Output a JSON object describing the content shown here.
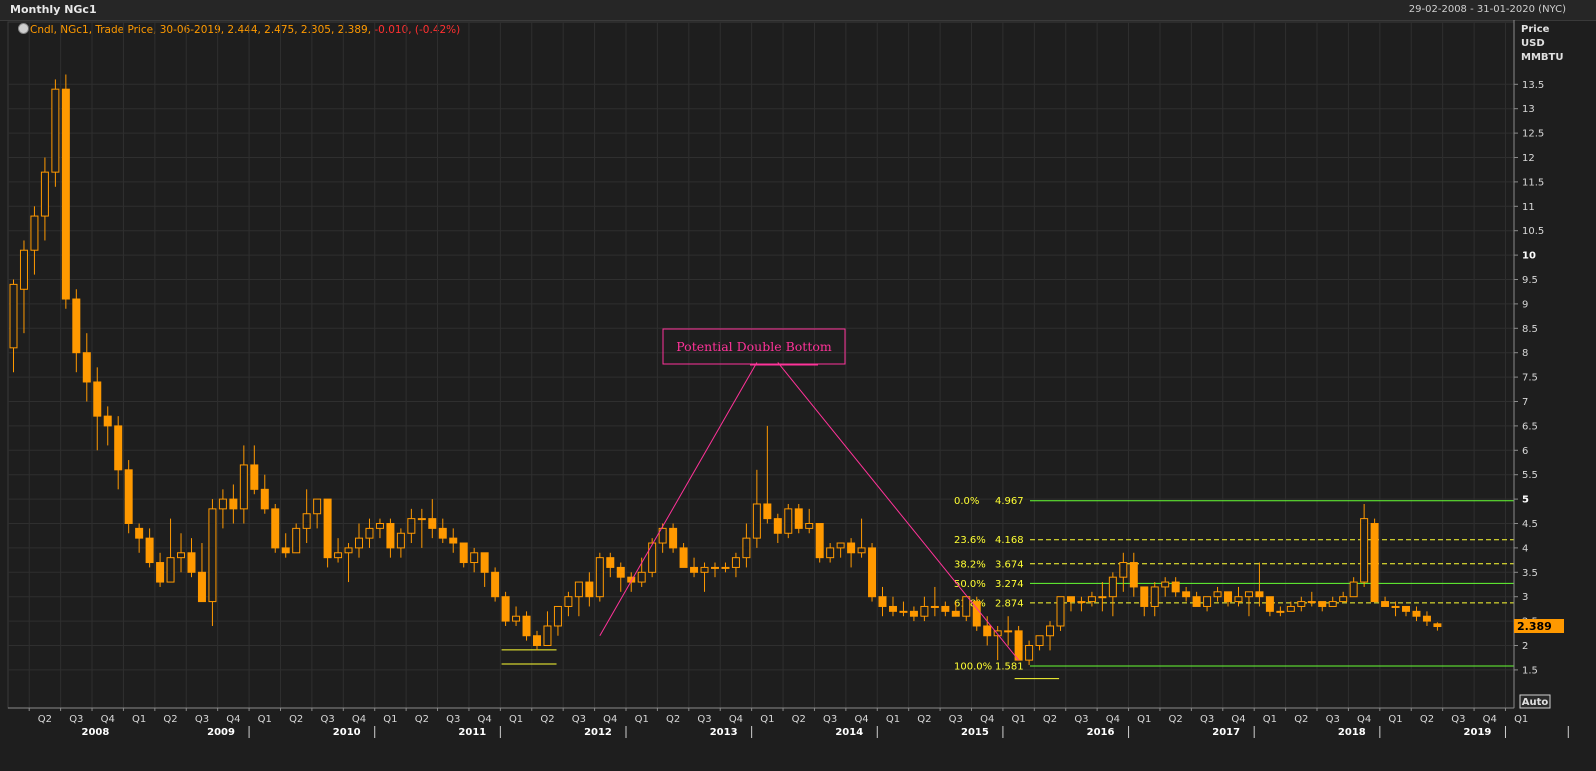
{
  "window": {
    "title": "Monthly NGc1",
    "date_range": "29-02-2008 - 31-01-2020 (NYC)"
  },
  "legend": {
    "prefix": "Cndl, NGc1, Trade Price, 30-06-2019, 2.444, 2.475, 2.305, 2.389,",
    "change": "-0.010, (-0.42%)"
  },
  "axis": {
    "unit_line1": "Price",
    "unit_line2": "USD",
    "unit_line3": "MMBTU",
    "last_price": "2.389",
    "auto_label": "Auto"
  },
  "annotation": {
    "text": "Potential Double Bottom"
  },
  "colors": {
    "candle": "#ff9900",
    "fib_solid": "#66ff33",
    "fib_dashed": "#ffff33",
    "annotation": "#ff3399",
    "price_tag": "#ff9900"
  },
  "chart_data": {
    "type": "candlestick",
    "title": "Monthly NGc1",
    "ylabel": "Price USD MMBTU",
    "ylim": [
      0.5,
      14
    ],
    "ytick_labels": [
      "1.5",
      "2",
      "2.5",
      "3",
      "3.5",
      "4",
      "4.5",
      "5",
      "5.5",
      "6",
      "6.5",
      "7",
      "7.5",
      "8",
      "8.5",
      "9",
      "9.5",
      "10",
      "10.5",
      "11",
      "11.5",
      "12",
      "12.5",
      "13",
      "13.5"
    ],
    "x_start": "2008-02",
    "x_quarter_labels": [
      "Q2",
      "Q3",
      "Q4",
      "Q1",
      "Q2",
      "Q3",
      "Q4",
      "Q1",
      "Q2",
      "Q3",
      "Q4",
      "Q1",
      "Q2",
      "Q3",
      "Q4",
      "Q1",
      "Q2",
      "Q3",
      "Q4",
      "Q1",
      "Q2",
      "Q3",
      "Q4",
      "Q1",
      "Q2",
      "Q3",
      "Q4",
      "Q1",
      "Q2",
      "Q3",
      "Q4",
      "Q1",
      "Q2",
      "Q3",
      "Q4",
      "Q1",
      "Q2",
      "Q3",
      "Q4",
      "Q1",
      "Q2",
      "Q3",
      "Q4",
      "Q1",
      "Q2",
      "Q3",
      "Q4",
      "Q1"
    ],
    "x_year_labels": [
      "2008",
      "2009",
      "2010",
      "2011",
      "2012",
      "2013",
      "2014",
      "2015",
      "2016",
      "2017",
      "2018",
      "2019"
    ],
    "columns": [
      "month",
      "open",
      "high",
      "low",
      "close"
    ],
    "candles": [
      [
        "2008-02",
        8.1,
        9.5,
        7.6,
        9.4
      ],
      [
        "2008-03",
        9.3,
        10.3,
        8.4,
        10.1
      ],
      [
        "2008-04",
        10.1,
        11.0,
        9.6,
        10.8
      ],
      [
        "2008-05",
        10.8,
        12.0,
        10.3,
        11.7
      ],
      [
        "2008-06",
        11.7,
        13.6,
        11.4,
        13.4
      ],
      [
        "2008-07",
        13.4,
        13.7,
        8.9,
        9.1
      ],
      [
        "2008-08",
        9.1,
        9.3,
        7.6,
        8.0
      ],
      [
        "2008-09",
        8.0,
        8.4,
        7.0,
        7.4
      ],
      [
        "2008-10",
        7.4,
        7.7,
        6.0,
        6.7
      ],
      [
        "2008-11",
        6.7,
        6.9,
        6.1,
        6.5
      ],
      [
        "2008-12",
        6.5,
        6.7,
        5.2,
        5.6
      ],
      [
        "2009-01",
        5.6,
        5.8,
        4.3,
        4.5
      ],
      [
        "2009-02",
        4.4,
        4.5,
        3.9,
        4.2
      ],
      [
        "2009-03",
        4.2,
        4.4,
        3.6,
        3.7
      ],
      [
        "2009-04",
        3.7,
        3.9,
        3.2,
        3.3
      ],
      [
        "2009-05",
        3.3,
        4.6,
        3.3,
        3.8
      ],
      [
        "2009-06",
        3.8,
        4.3,
        3.5,
        3.9
      ],
      [
        "2009-07",
        3.9,
        4.2,
        3.4,
        3.5
      ],
      [
        "2009-08",
        3.5,
        4.1,
        2.9,
        2.9
      ],
      [
        "2009-09",
        2.9,
        5.0,
        2.4,
        4.8
      ],
      [
        "2009-10",
        4.8,
        5.2,
        4.4,
        5.0
      ],
      [
        "2009-11",
        5.0,
        5.3,
        4.5,
        4.8
      ],
      [
        "2009-12",
        4.8,
        6.1,
        4.5,
        5.7
      ],
      [
        "2010-01",
        5.7,
        6.1,
        5.1,
        5.2
      ],
      [
        "2010-02",
        5.2,
        5.5,
        4.7,
        4.8
      ],
      [
        "2010-03",
        4.8,
        4.9,
        3.9,
        4.0
      ],
      [
        "2010-04",
        4.0,
        4.3,
        3.8,
        3.9
      ],
      [
        "2010-05",
        3.9,
        4.5,
        3.9,
        4.4
      ],
      [
        "2010-06",
        4.4,
        5.2,
        4.1,
        4.7
      ],
      [
        "2010-07",
        4.7,
        5.0,
        4.4,
        5.0
      ],
      [
        "2010-08",
        5.0,
        5.0,
        3.6,
        3.8
      ],
      [
        "2010-09",
        3.8,
        4.2,
        3.7,
        3.9
      ],
      [
        "2010-10",
        3.9,
        4.1,
        3.3,
        4.0
      ],
      [
        "2010-11",
        4.0,
        4.5,
        3.8,
        4.2
      ],
      [
        "2010-12",
        4.2,
        4.6,
        4.0,
        4.4
      ],
      [
        "2011-01",
        4.4,
        4.6,
        4.2,
        4.5
      ],
      [
        "2011-02",
        4.5,
        4.6,
        3.8,
        4.0
      ],
      [
        "2011-03",
        4.0,
        4.4,
        3.8,
        4.3
      ],
      [
        "2011-04",
        4.3,
        4.8,
        4.1,
        4.6
      ],
      [
        "2011-05",
        4.6,
        4.8,
        4.0,
        4.6
      ],
      [
        "2011-06",
        4.6,
        5.0,
        4.2,
        4.4
      ],
      [
        "2011-07",
        4.4,
        4.6,
        4.1,
        4.2
      ],
      [
        "2011-08",
        4.2,
        4.4,
        3.9,
        4.1
      ],
      [
        "2011-09",
        4.1,
        4.1,
        3.6,
        3.7
      ],
      [
        "2011-10",
        3.7,
        4.0,
        3.5,
        3.9
      ],
      [
        "2011-11",
        3.9,
        3.9,
        3.2,
        3.5
      ],
      [
        "2011-12",
        3.5,
        3.6,
        2.9,
        3.0
      ],
      [
        "2012-01",
        3.0,
        3.1,
        2.4,
        2.5
      ],
      [
        "2012-02",
        2.5,
        2.8,
        2.4,
        2.6
      ],
      [
        "2012-03",
        2.6,
        2.7,
        2.1,
        2.2
      ],
      [
        "2012-04",
        2.2,
        2.3,
        1.9,
        2.0
      ],
      [
        "2012-05",
        2.0,
        2.7,
        2.0,
        2.4
      ],
      [
        "2012-06",
        2.4,
        2.8,
        2.2,
        2.8
      ],
      [
        "2012-07",
        2.8,
        3.1,
        2.6,
        3.0
      ],
      [
        "2012-08",
        3.0,
        3.3,
        2.6,
        3.3
      ],
      [
        "2012-09",
        3.3,
        3.5,
        2.8,
        3.0
      ],
      [
        "2012-10",
        3.0,
        3.9,
        2.9,
        3.8
      ],
      [
        "2012-11",
        3.8,
        3.9,
        3.4,
        3.6
      ],
      [
        "2012-12",
        3.6,
        3.7,
        3.1,
        3.4
      ],
      [
        "2013-01",
        3.4,
        3.5,
        3.1,
        3.3
      ],
      [
        "2013-02",
        3.3,
        3.8,
        3.2,
        3.5
      ],
      [
        "2013-03",
        3.5,
        4.2,
        3.4,
        4.1
      ],
      [
        "2013-04",
        4.1,
        4.5,
        3.9,
        4.4
      ],
      [
        "2013-05",
        4.4,
        4.5,
        3.9,
        4.0
      ],
      [
        "2013-06",
        4.0,
        4.1,
        3.6,
        3.6
      ],
      [
        "2013-07",
        3.6,
        3.8,
        3.4,
        3.5
      ],
      [
        "2013-08",
        3.5,
        3.7,
        3.1,
        3.6
      ],
      [
        "2013-09",
        3.6,
        3.7,
        3.4,
        3.6
      ],
      [
        "2013-10",
        3.6,
        3.7,
        3.5,
        3.6
      ],
      [
        "2013-11",
        3.6,
        3.9,
        3.4,
        3.8
      ],
      [
        "2013-12",
        3.8,
        4.5,
        3.6,
        4.2
      ],
      [
        "2014-01",
        4.2,
        5.6,
        4.0,
        4.9
      ],
      [
        "2014-02",
        4.9,
        6.5,
        4.5,
        4.6
      ],
      [
        "2014-03",
        4.6,
        4.7,
        4.1,
        4.3
      ],
      [
        "2014-04",
        4.3,
        4.9,
        4.2,
        4.8
      ],
      [
        "2014-05",
        4.8,
        4.9,
        4.3,
        4.4
      ],
      [
        "2014-06",
        4.4,
        4.8,
        4.3,
        4.5
      ],
      [
        "2014-07",
        4.5,
        4.5,
        3.7,
        3.8
      ],
      [
        "2014-08",
        3.8,
        4.1,
        3.7,
        4.0
      ],
      [
        "2014-09",
        4.0,
        4.1,
        3.8,
        4.1
      ],
      [
        "2014-10",
        4.1,
        4.2,
        3.6,
        3.9
      ],
      [
        "2014-11",
        3.9,
        4.6,
        3.8,
        4.0
      ],
      [
        "2014-12",
        4.0,
        4.1,
        2.9,
        3.0
      ],
      [
        "2015-01",
        3.0,
        3.2,
        2.6,
        2.8
      ],
      [
        "2015-02",
        2.8,
        3.0,
        2.6,
        2.7
      ],
      [
        "2015-03",
        2.7,
        2.9,
        2.6,
        2.7
      ],
      [
        "2015-04",
        2.7,
        2.8,
        2.5,
        2.6
      ],
      [
        "2015-05",
        2.6,
        3.0,
        2.5,
        2.8
      ],
      [
        "2015-06",
        2.8,
        3.2,
        2.6,
        2.8
      ],
      [
        "2015-07",
        2.8,
        2.9,
        2.6,
        2.7
      ],
      [
        "2015-08",
        2.7,
        2.9,
        2.6,
        2.6
      ],
      [
        "2015-09",
        2.6,
        3.0,
        2.5,
        3.0
      ],
      [
        "2015-10",
        2.9,
        3.0,
        2.3,
        2.4
      ],
      [
        "2015-11",
        2.4,
        2.6,
        2.0,
        2.2
      ],
      [
        "2015-12",
        2.2,
        2.4,
        1.7,
        2.3
      ],
      [
        "2016-01",
        2.3,
        2.6,
        2.0,
        2.3
      ],
      [
        "2016-02",
        2.3,
        2.4,
        1.8,
        1.7
      ],
      [
        "2016-03",
        1.7,
        2.1,
        1.6,
        2.0
      ],
      [
        "2016-04",
        2.0,
        2.2,
        1.9,
        2.2
      ],
      [
        "2016-05",
        2.2,
        2.5,
        1.9,
        2.4
      ],
      [
        "2016-06",
        2.4,
        3.0,
        2.3,
        3.0
      ],
      [
        "2016-07",
        3.0,
        3.0,
        2.7,
        2.9
      ],
      [
        "2016-08",
        2.9,
        3.0,
        2.7,
        2.9
      ],
      [
        "2016-09",
        2.9,
        3.1,
        2.8,
        3.0
      ],
      [
        "2016-10",
        3.0,
        3.3,
        2.7,
        3.0
      ],
      [
        "2016-11",
        3.0,
        3.5,
        2.6,
        3.4
      ],
      [
        "2016-12",
        3.4,
        3.9,
        3.1,
        3.7
      ],
      [
        "2017-01",
        3.7,
        3.9,
        3.0,
        3.2
      ],
      [
        "2017-02",
        3.2,
        3.2,
        2.6,
        2.8
      ],
      [
        "2017-03",
        2.8,
        3.3,
        2.6,
        3.2
      ],
      [
        "2017-04",
        3.2,
        3.4,
        3.0,
        3.3
      ],
      [
        "2017-05",
        3.3,
        3.4,
        3.0,
        3.1
      ],
      [
        "2017-06",
        3.1,
        3.2,
        2.9,
        3.0
      ],
      [
        "2017-07",
        3.0,
        3.1,
        2.8,
        2.8
      ],
      [
        "2017-08",
        2.8,
        3.0,
        2.7,
        3.0
      ],
      [
        "2017-09",
        3.0,
        3.2,
        2.9,
        3.1
      ],
      [
        "2017-10",
        3.1,
        3.1,
        2.8,
        2.9
      ],
      [
        "2017-11",
        2.9,
        3.2,
        2.8,
        3.0
      ],
      [
        "2017-12",
        3.0,
        3.1,
        2.6,
        3.1
      ],
      [
        "2018-01",
        3.1,
        3.7,
        2.8,
        3.0
      ],
      [
        "2018-02",
        3.0,
        3.0,
        2.6,
        2.7
      ],
      [
        "2018-03",
        2.7,
        2.8,
        2.6,
        2.7
      ],
      [
        "2018-04",
        2.7,
        2.9,
        2.7,
        2.8
      ],
      [
        "2018-05",
        2.8,
        3.0,
        2.7,
        2.9
      ],
      [
        "2018-06",
        2.9,
        3.1,
        2.8,
        2.9
      ],
      [
        "2018-07",
        2.9,
        2.9,
        2.7,
        2.8
      ],
      [
        "2018-08",
        2.8,
        3.0,
        2.8,
        2.9
      ],
      [
        "2018-09",
        2.9,
        3.1,
        2.9,
        3.0
      ],
      [
        "2018-10",
        3.0,
        3.4,
        3.0,
        3.3
      ],
      [
        "2018-11",
        3.3,
        4.9,
        3.2,
        4.6
      ],
      [
        "2018-12",
        4.5,
        4.6,
        2.9,
        2.9
      ],
      [
        "2019-01",
        2.9,
        3.0,
        2.8,
        2.8
      ],
      [
        "2019-02",
        2.8,
        2.9,
        2.6,
        2.8
      ],
      [
        "2019-03",
        2.8,
        2.8,
        2.6,
        2.7
      ],
      [
        "2019-04",
        2.7,
        2.8,
        2.5,
        2.6
      ],
      [
        "2019-05",
        2.6,
        2.7,
        2.4,
        2.5
      ],
      [
        "2019-06",
        2.444,
        2.475,
        2.305,
        2.389
      ]
    ],
    "fibonacci": [
      {
        "label": "0.0%",
        "value": 4.967,
        "value_label": "4.967",
        "style": "solid"
      },
      {
        "label": "23.6%",
        "value": 4.168,
        "value_label": "4.168",
        "style": "dashed"
      },
      {
        "label": "38.2%",
        "value": 3.674,
        "value_label": "3.674",
        "style": "dashed"
      },
      {
        "label": "50.0%",
        "value": 3.274,
        "value_label": "3.274",
        "style": "solid"
      },
      {
        "label": "61.8%",
        "value": 2.874,
        "value_label": "2.874",
        "style": "dashed"
      },
      {
        "label": "100.0%",
        "value": 1.581,
        "value_label": "1.581",
        "style": "solid"
      }
    ],
    "support_markers": [
      {
        "from": "2012-01",
        "to": "2012-03",
        "value": 1.91
      },
      {
        "from": "2012-01",
        "to": "2012-03",
        "value": 1.62
      },
      {
        "from": "2016-02",
        "to": "2016-03",
        "value": 1.32
      }
    ],
    "pattern_lines": [
      {
        "from": [
          "2012-10",
          2.2
        ],
        "to": [
          "2014-01",
          7.8
        ]
      },
      {
        "from": [
          "2014-03",
          7.8
        ],
        "to": [
          "2016-02",
          1.7
        ]
      }
    ]
  }
}
